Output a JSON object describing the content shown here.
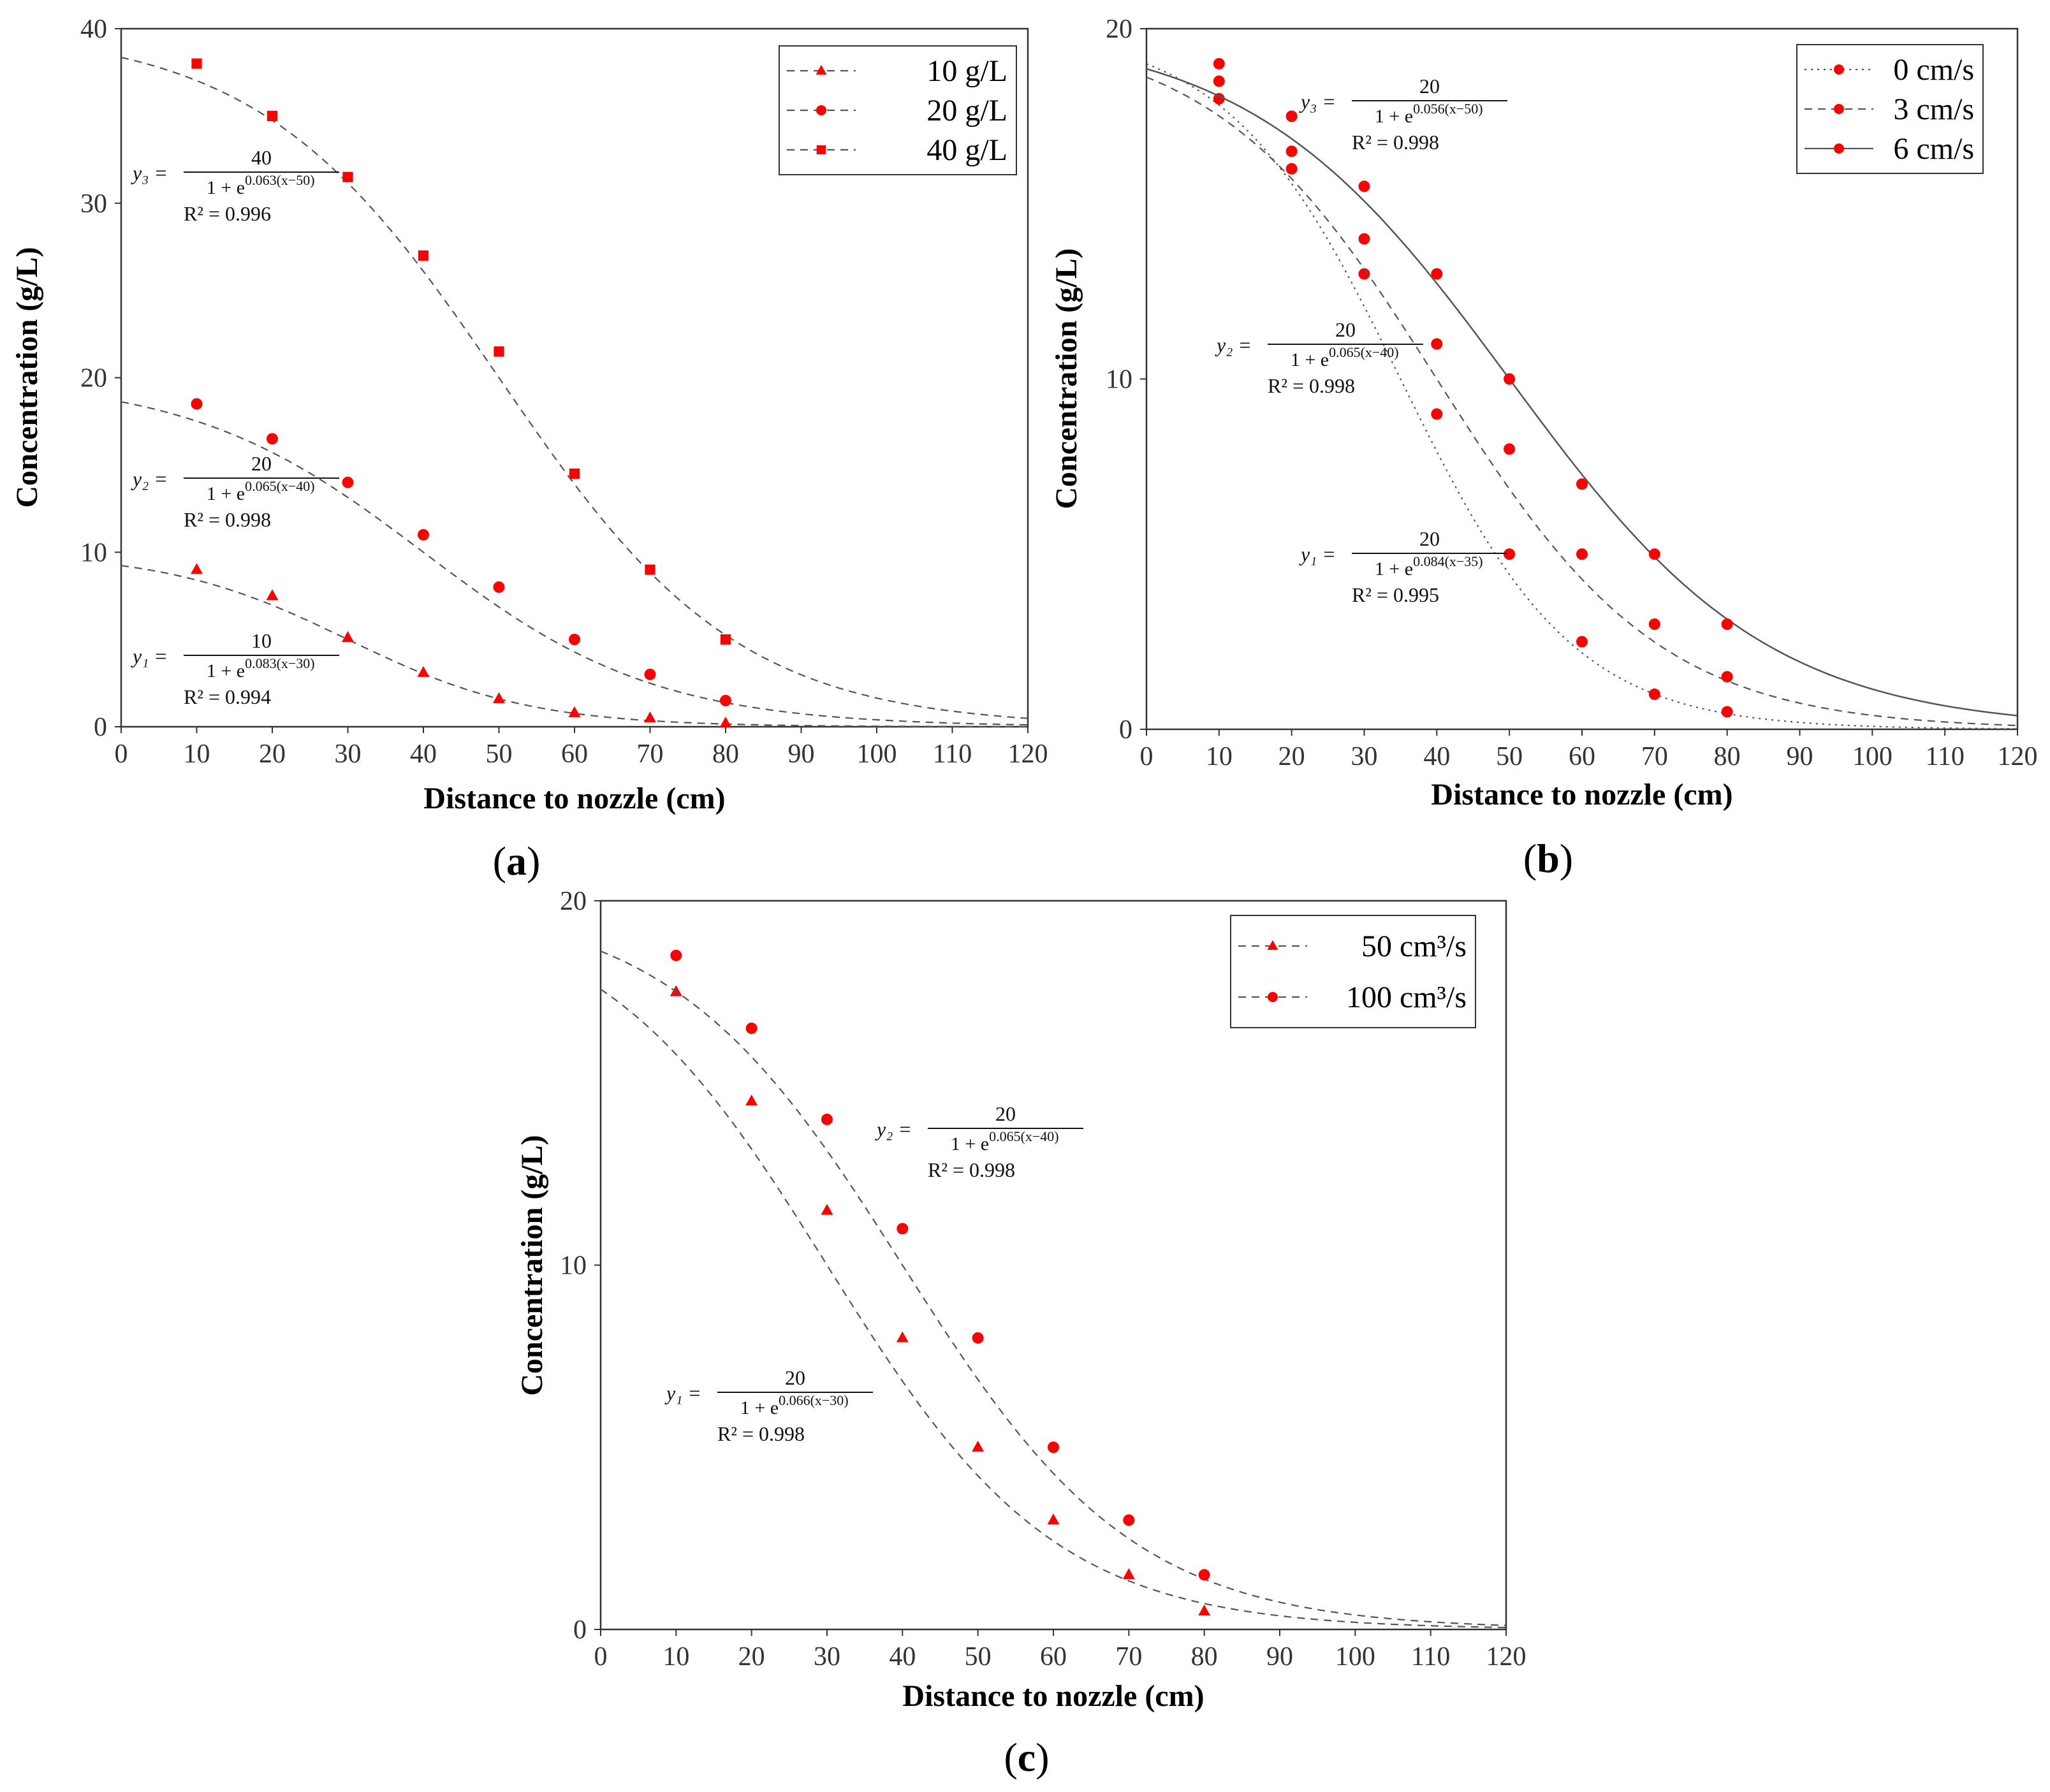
{
  "chart_data": [
    {
      "id": "a",
      "type": "line",
      "panel_label": "(a)",
      "xlabel": "Distance to nozzle (cm)",
      "ylabel": "Concentration (g/L)",
      "xlim": [
        0,
        120
      ],
      "ylim": [
        0,
        40
      ],
      "xticks": [
        0,
        10,
        20,
        30,
        40,
        50,
        60,
        70,
        80,
        90,
        100,
        110,
        120
      ],
      "yticks": [
        0,
        10,
        20,
        30,
        40
      ],
      "grid": false,
      "legend_position": "top-right",
      "series": [
        {
          "name": "10 g/L",
          "marker": "triangle",
          "line": "dashed",
          "x": [
            10,
            20,
            30,
            40,
            50,
            60,
            70,
            80
          ],
          "values": [
            9.0,
            7.5,
            5.1,
            3.1,
            1.6,
            0.8,
            0.5,
            0.2
          ],
          "fit": {
            "a": 10,
            "k": 0.083,
            "x0": 30
          }
        },
        {
          "name": "20 g/L",
          "marker": "circle",
          "line": "dashed",
          "x": [
            10,
            20,
            30,
            40,
            50,
            60,
            70,
            80
          ],
          "values": [
            18.5,
            16.5,
            14.0,
            11.0,
            8.0,
            5.0,
            3.0,
            1.5
          ],
          "fit": {
            "a": 20,
            "k": 0.065,
            "x0": 40
          }
        },
        {
          "name": "40 g/L",
          "marker": "square",
          "line": "dashed",
          "x": [
            10,
            20,
            30,
            40,
            50,
            60,
            70,
            80
          ],
          "values": [
            38.0,
            35.0,
            31.5,
            27.0,
            21.5,
            14.5,
            9.0,
            5.0
          ],
          "fit": {
            "a": 40,
            "k": 0.063,
            "x0": 50
          }
        }
      ],
      "annotations": [
        {
          "lhs": "y₃ =",
          "num": "40",
          "den": "1 + e^{0.063(x−50)}",
          "r2": "R² = 0.996"
        },
        {
          "lhs": "y₂ =",
          "num": "20",
          "den": "1 + e^{0.065(x−40)}",
          "r2": "R² = 0.998"
        },
        {
          "lhs": "y₁ =",
          "num": "10",
          "den": "1 + e^{0.083(x−30)}",
          "r2": "R² = 0.994"
        }
      ]
    },
    {
      "id": "b",
      "type": "line",
      "panel_label": "(b)",
      "xlabel": "Distance to nozzle (cm)",
      "ylabel": "Concentration (g/L)",
      "xlim": [
        0,
        120
      ],
      "ylim": [
        0,
        20
      ],
      "xticks": [
        0,
        10,
        20,
        30,
        40,
        50,
        60,
        70,
        80,
        90,
        100,
        110,
        120
      ],
      "yticks": [
        0,
        10,
        20
      ],
      "grid": false,
      "legend_position": "top-right",
      "series": [
        {
          "name": "0 cm/s",
          "marker": "circle",
          "line": "dotted",
          "x": [
            10,
            20,
            30,
            40,
            50,
            60,
            70,
            80
          ],
          "values": [
            18.0,
            16.0,
            13.0,
            9.0,
            5.0,
            2.5,
            1.0,
            0.5
          ],
          "fit": {
            "a": 20,
            "k": 0.084,
            "x0": 35
          }
        },
        {
          "name": "3 cm/s",
          "marker": "circle",
          "line": "dashed",
          "x": [
            10,
            20,
            30,
            40,
            50,
            60,
            70,
            80
          ],
          "values": [
            18.5,
            16.5,
            14.0,
            11.0,
            8.0,
            5.0,
            3.0,
            1.5
          ],
          "fit": {
            "a": 20,
            "k": 0.065,
            "x0": 40
          }
        },
        {
          "name": "6 cm/s",
          "marker": "circle",
          "line": "solid",
          "x": [
            10,
            20,
            30,
            40,
            50,
            60,
            70,
            80
          ],
          "values": [
            19.0,
            17.5,
            15.5,
            13.0,
            10.0,
            7.0,
            5.0,
            3.0
          ],
          "fit": {
            "a": 20,
            "k": 0.056,
            "x0": 50
          }
        }
      ],
      "annotations": [
        {
          "lhs": "y₃ =",
          "num": "20",
          "den": "1 + e^{0.056(x−50)}",
          "r2": "R² = 0.998"
        },
        {
          "lhs": "y₂ =",
          "num": "20",
          "den": "1 + e^{0.065(x−40)}",
          "r2": "R² = 0.998"
        },
        {
          "lhs": "y₁ =",
          "num": "20",
          "den": "1 + e^{0.084(x−35)}",
          "r2": "R² = 0.995"
        }
      ]
    },
    {
      "id": "c",
      "type": "line",
      "panel_label": "(c)",
      "xlabel": "Distance to nozzle (cm)",
      "ylabel": "Concentration (g/L)",
      "xlim": [
        0,
        120
      ],
      "ylim": [
        0,
        20
      ],
      "xticks": [
        0,
        10,
        20,
        30,
        40,
        50,
        60,
        70,
        80,
        90,
        100,
        110,
        120
      ],
      "yticks": [
        0,
        10,
        20
      ],
      "grid": false,
      "legend_position": "top-right",
      "series": [
        {
          "name": "50 cm³/s",
          "marker": "triangle",
          "line": "dashed",
          "x": [
            10,
            20,
            30,
            40,
            50,
            60,
            70,
            80
          ],
          "values": [
            17.5,
            14.5,
            11.5,
            8.0,
            5.0,
            3.0,
            1.5,
            0.5
          ],
          "fit": {
            "a": 20,
            "k": 0.066,
            "x0": 30
          }
        },
        {
          "name": "100 cm³/s",
          "marker": "circle",
          "line": "dashed",
          "x": [
            10,
            20,
            30,
            40,
            50,
            60,
            70,
            80
          ],
          "values": [
            18.5,
            16.5,
            14.0,
            11.0,
            8.0,
            5.0,
            3.0,
            1.5
          ],
          "fit": {
            "a": 20,
            "k": 0.065,
            "x0": 40
          }
        }
      ],
      "annotations": [
        {
          "lhs": "y₂ =",
          "num": "20",
          "den": "1 + e^{0.065(x−40)}",
          "r2": "R² = 0.998"
        },
        {
          "lhs": "y₁ =",
          "num": "20",
          "den": "1 + e^{0.066(x−30)}",
          "r2": "R² = 0.998"
        }
      ]
    }
  ],
  "colors": {
    "marker": "#ff0000",
    "line": "#555555",
    "axis": "#333333"
  }
}
